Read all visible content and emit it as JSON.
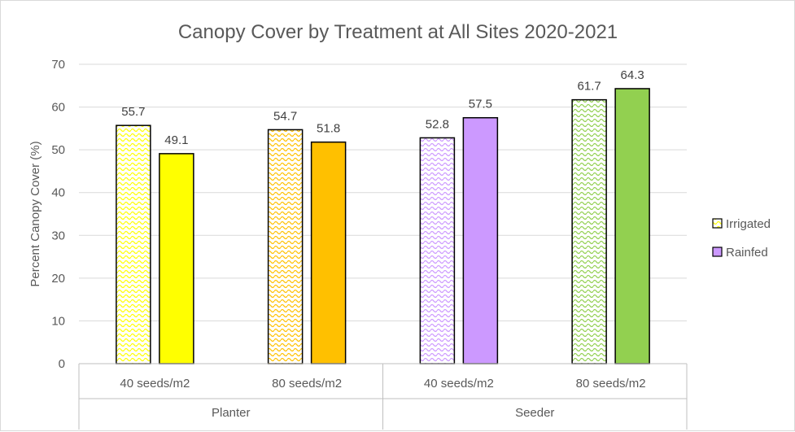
{
  "chart_data": {
    "type": "bar",
    "title": "Canopy Cover by Treatment at All Sites 2020-2021",
    "xlabel": "",
    "ylabel": "Percent Canopy Cover (%)",
    "ylim": [
      0,
      70
    ],
    "yticks": [
      0,
      10,
      20,
      30,
      40,
      50,
      60,
      70
    ],
    "grid": true,
    "legend_position": "right",
    "groups": [
      {
        "label": "Planter",
        "categories": [
          {
            "label": "40 seeds/m2",
            "irrigated": 55.7,
            "rainfed": 49.1,
            "color": "#ffff00"
          },
          {
            "label": "80 seeds/m2",
            "irrigated": 54.7,
            "rainfed": 51.8,
            "color": "#ffc000"
          }
        ]
      },
      {
        "label": "Seeder",
        "categories": [
          {
            "label": "40 seeds/m2",
            "irrigated": 52.8,
            "rainfed": 57.5,
            "color": "#cc99ff"
          },
          {
            "label": "80 seeds/m2",
            "irrigated": 61.7,
            "rainfed": 64.3,
            "color": "#92d050"
          }
        ]
      }
    ],
    "series": [
      {
        "name": "Irrigated",
        "pattern": "wave",
        "swatch_color": "#ffff00"
      },
      {
        "name": "Rainfed",
        "pattern": "solid",
        "swatch_color": "#cc99ff"
      }
    ]
  }
}
